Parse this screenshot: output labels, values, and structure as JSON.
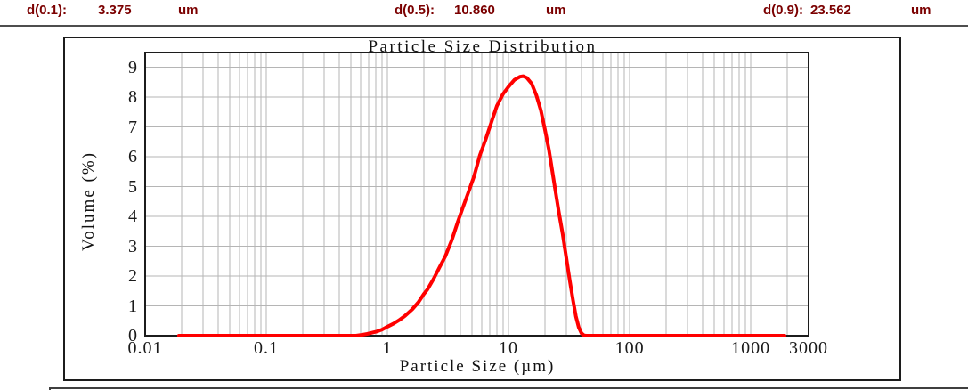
{
  "header": {
    "items": [
      {
        "label": "d(0.1):",
        "value": "3.375",
        "unit": "um"
      },
      {
        "label": "d(0.5):",
        "value": "10.860",
        "unit": "um"
      },
      {
        "label": "d(0.9):",
        "value": "23.562",
        "unit": "um"
      }
    ]
  },
  "colors": {
    "header_text": "#7b0000",
    "curve": "#ff0000",
    "grid": "#b5b5b5",
    "axis": "#1c1c1c"
  },
  "chart_data": {
    "type": "line",
    "title": "Particle Size Distribution",
    "xlabel": "Particle Size (µm)",
    "ylabel": "Volume (%)",
    "x_scale": "log",
    "xlim": [
      0.01,
      3000
    ],
    "ylim": [
      0,
      9.5
    ],
    "x_ticks": [
      "0.01",
      "0.1",
      "1",
      "10",
      "100",
      "1000",
      "3000"
    ],
    "y_ticks": [
      0,
      1,
      2,
      3,
      4,
      5,
      6,
      7,
      8,
      9
    ],
    "grid": true,
    "legend": "none",
    "series": [
      {
        "name": "Volume",
        "color": "#ff0000",
        "points": [
          [
            0.019,
            0
          ],
          [
            0.1,
            0
          ],
          [
            0.3,
            0
          ],
          [
            0.55,
            0
          ],
          [
            0.62,
            0.03
          ],
          [
            0.68,
            0.06
          ],
          [
            0.75,
            0.1
          ],
          [
            0.82,
            0.14
          ],
          [
            0.9,
            0.2
          ],
          [
            1.0,
            0.3
          ],
          [
            1.12,
            0.4
          ],
          [
            1.25,
            0.52
          ],
          [
            1.4,
            0.67
          ],
          [
            1.6,
            0.88
          ],
          [
            1.8,
            1.12
          ],
          [
            2.0,
            1.4
          ],
          [
            2.14,
            1.55
          ],
          [
            2.4,
            1.9
          ],
          [
            2.7,
            2.3
          ],
          [
            3.0,
            2.65
          ],
          [
            3.4,
            3.2
          ],
          [
            3.8,
            3.8
          ],
          [
            4.2,
            4.3
          ],
          [
            4.7,
            4.85
          ],
          [
            5.2,
            5.35
          ],
          [
            5.8,
            6.05
          ],
          [
            6.5,
            6.6
          ],
          [
            7.2,
            7.15
          ],
          [
            8.0,
            7.7
          ],
          [
            9.0,
            8.1
          ],
          [
            10.0,
            8.35
          ],
          [
            11.2,
            8.58
          ],
          [
            12.4,
            8.68
          ],
          [
            13.2,
            8.7
          ],
          [
            14.2,
            8.64
          ],
          [
            15.5,
            8.45
          ],
          [
            17.0,
            8.05
          ],
          [
            18.5,
            7.55
          ],
          [
            20.0,
            6.9
          ],
          [
            21.5,
            6.25
          ],
          [
            23.0,
            5.5
          ],
          [
            24.5,
            4.8
          ],
          [
            26.0,
            4.15
          ],
          [
            28.0,
            3.4
          ],
          [
            30.0,
            2.6
          ],
          [
            32.0,
            1.85
          ],
          [
            34.0,
            1.2
          ],
          [
            36.0,
            0.65
          ],
          [
            38.0,
            0.28
          ],
          [
            40.0,
            0.08
          ],
          [
            42.0,
            0.01
          ],
          [
            44.0,
            0
          ],
          [
            60,
            0
          ],
          [
            100,
            0
          ],
          [
            300,
            0
          ],
          [
            1000,
            0
          ],
          [
            1900,
            0
          ]
        ]
      }
    ]
  }
}
